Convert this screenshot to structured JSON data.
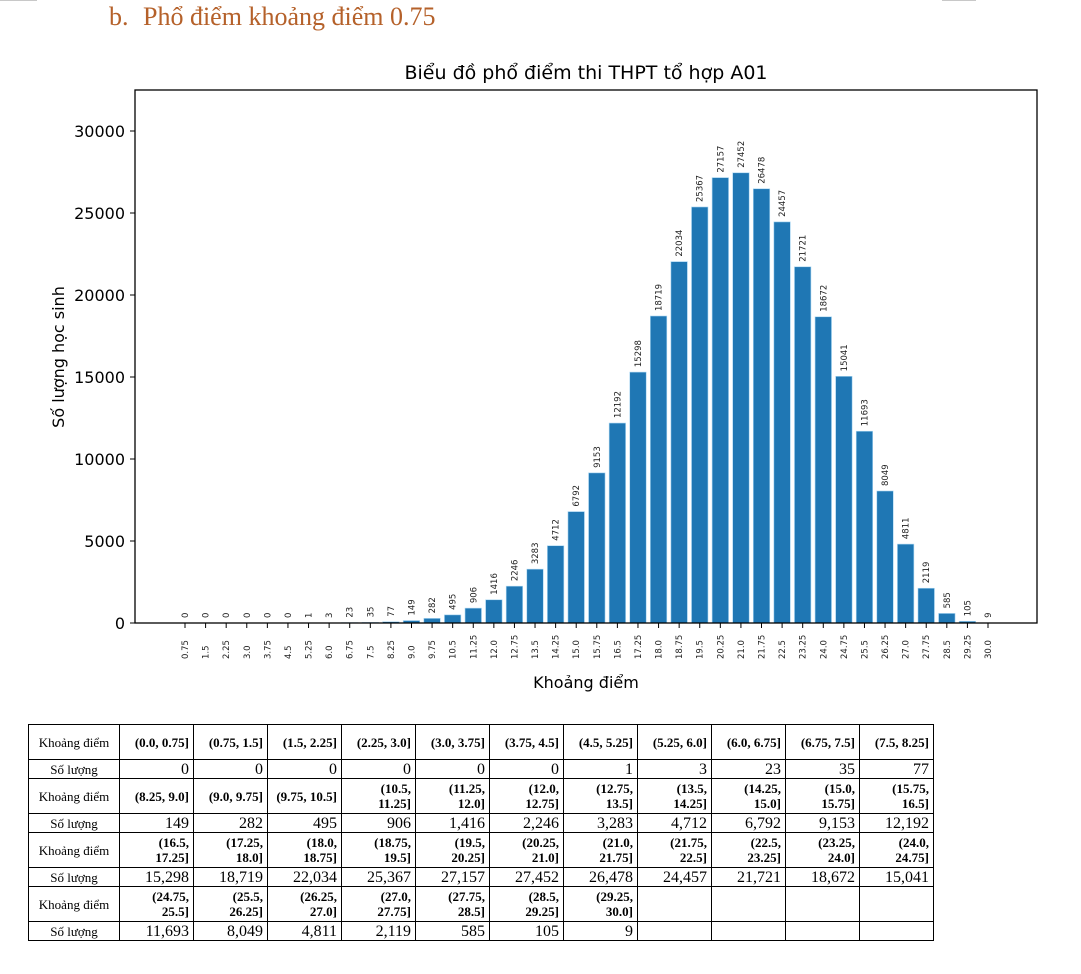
{
  "heading": {
    "number": "b.",
    "text": "Phổ điểm khoảng điểm 0.75"
  },
  "chart_data": {
    "type": "bar",
    "title": "Biểu đồ phổ điểm thi THPT tổ hợp A01",
    "xlabel": "Khoảng điểm",
    "ylabel": "Số lượng học sinh",
    "categories": [
      "0.75",
      "1.5",
      "2.25",
      "3.0",
      "3.75",
      "4.5",
      "5.25",
      "6.0",
      "6.75",
      "7.5",
      "8.25",
      "9.0",
      "9.75",
      "10.5",
      "11.25",
      "12.0",
      "12.75",
      "13.5",
      "14.25",
      "15.0",
      "15.75",
      "16.5",
      "17.25",
      "18.0",
      "18.75",
      "19.5",
      "20.25",
      "21.0",
      "21.75",
      "22.5",
      "23.25",
      "24.0",
      "24.75",
      "25.5",
      "26.25",
      "27.0",
      "27.75",
      "28.5",
      "29.25",
      "30.0"
    ],
    "values": [
      0,
      0,
      0,
      0,
      0,
      0,
      1,
      3,
      23,
      35,
      77,
      149,
      282,
      495,
      906,
      1416,
      2246,
      3283,
      4712,
      6792,
      9153,
      12192,
      15298,
      18719,
      22034,
      25367,
      27157,
      27452,
      26478,
      24457,
      21721,
      18672,
      15041,
      11693,
      8049,
      4811,
      2119,
      585,
      105,
      9
    ],
    "yticks": [
      "0",
      "5000",
      "10000",
      "15000",
      "20000",
      "25000",
      "30000"
    ],
    "ylim": [
      0,
      32500
    ],
    "grid": false,
    "bar_color": "#1f77b4"
  },
  "table": {
    "range_label": "Khoảng điểm",
    "count_label": "Số lượng",
    "blocks": [
      {
        "ranges": [
          "(0.0, 0.75]",
          "(0.75, 1.5]",
          "(1.5, 2.25]",
          "(2.25, 3.0]",
          "(3.0, 3.75]",
          "(3.75, 4.5]",
          "(4.5, 5.25]",
          "(5.25, 6.0]",
          "(6.0, 6.75]",
          "(6.75, 7.5]",
          "(7.5, 8.25]"
        ],
        "counts": [
          "0",
          "0",
          "0",
          "0",
          "0",
          "0",
          "1",
          "3",
          "23",
          "35",
          "77"
        ]
      },
      {
        "ranges": [
          "(8.25, 9.0]",
          "(9.0, 9.75]",
          "(9.75, 10.5]",
          "(10.5, 11.25]",
          "(11.25, 12.0]",
          "(12.0, 12.75]",
          "(12.75, 13.5]",
          "(13.5, 14.25]",
          "(14.25, 15.0]",
          "(15.0, 15.75]",
          "(15.75, 16.5]"
        ],
        "counts": [
          "149",
          "282",
          "495",
          "906",
          "1,416",
          "2,246",
          "3,283",
          "4,712",
          "6,792",
          "9,153",
          "12,192"
        ]
      },
      {
        "ranges": [
          "(16.5, 17.25]",
          "(17.25, 18.0]",
          "(18.0, 18.75]",
          "(18.75, 19.5]",
          "(19.5, 20.25]",
          "(20.25, 21.0]",
          "(21.0, 21.75]",
          "(21.75, 22.5]",
          "(22.5, 23.25]",
          "(23.25, 24.0]",
          "(24.0, 24.75]"
        ],
        "counts": [
          "15,298",
          "18,719",
          "22,034",
          "25,367",
          "27,157",
          "27,452",
          "26,478",
          "24,457",
          "21,721",
          "18,672",
          "15,041"
        ]
      },
      {
        "ranges": [
          "(24.75, 25.5]",
          "(25.5, 26.25]",
          "(26.25, 27.0]",
          "(27.0, 27.75]",
          "(27.75, 28.5]",
          "(28.5, 29.25]",
          "(29.25, 30.0]",
          "",
          "",
          "",
          ""
        ],
        "counts": [
          "11,693",
          "8,049",
          "4,811",
          "2,119",
          "585",
          "105",
          "9",
          "",
          "",
          "",
          ""
        ]
      }
    ]
  }
}
